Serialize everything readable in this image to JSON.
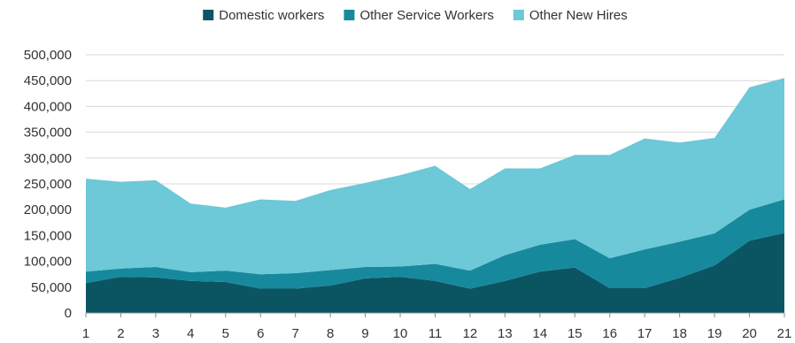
{
  "chart_data": {
    "type": "area",
    "stacked": true,
    "x": [
      1,
      2,
      3,
      4,
      5,
      6,
      7,
      8,
      9,
      10,
      11,
      12,
      13,
      14,
      15,
      16,
      17,
      18,
      19,
      20,
      21
    ],
    "x_tick_labels": [
      "1",
      "2",
      "3",
      "4",
      "5",
      "6",
      "7",
      "8",
      "9",
      "10",
      "11",
      "12",
      "13",
      "14",
      "15",
      "16",
      "17",
      "18",
      "19",
      "20",
      "21"
    ],
    "ylim": [
      0,
      500000
    ],
    "y_ticks": [
      0,
      50000,
      100000,
      150000,
      200000,
      250000,
      300000,
      350000,
      400000,
      450000,
      500000
    ],
    "y_tick_labels": [
      "0",
      "50,000",
      "100,000",
      "150,000",
      "200,000",
      "250,000",
      "300,000",
      "350,000",
      "400,000",
      "450,000",
      "500,000"
    ],
    "grid": true,
    "legend_position": "top-center",
    "series": [
      {
        "name": "Domestic workers",
        "color": "#0b5563",
        "values": [
          58000,
          70000,
          69000,
          62000,
          60000,
          47000,
          47000,
          53000,
          67000,
          70000,
          62000,
          47000,
          62000,
          80000,
          88000,
          48000,
          48000,
          68000,
          92000,
          140000,
          155000
        ]
      },
      {
        "name": "Other Service Workers",
        "color": "#17899c",
        "values": [
          22000,
          16000,
          20000,
          17000,
          22000,
          28000,
          30000,
          30000,
          22000,
          20000,
          33000,
          35000,
          50000,
          52000,
          55000,
          58000,
          75000,
          70000,
          62000,
          60000,
          65000
        ]
      },
      {
        "name": "Other New Hires",
        "color": "#6dc8d8",
        "values": [
          180000,
          168000,
          168000,
          133000,
          122000,
          145000,
          140000,
          155000,
          163000,
          177000,
          190000,
          158000,
          168000,
          148000,
          163000,
          200000,
          215000,
          192000,
          185000,
          237000,
          235000
        ]
      }
    ]
  }
}
